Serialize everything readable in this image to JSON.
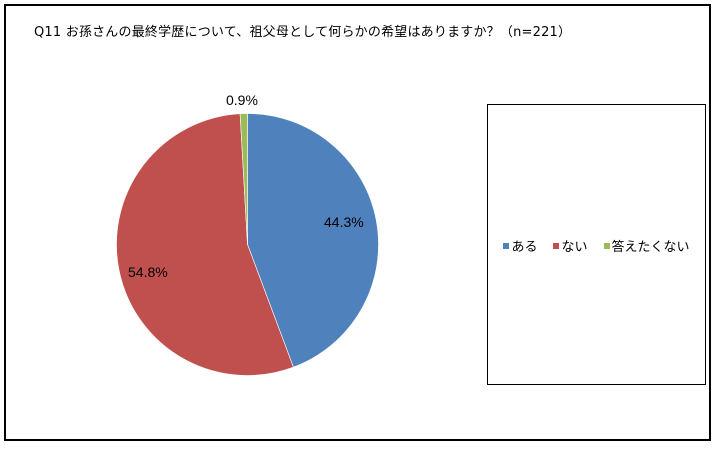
{
  "title": "Q11 お孫さんの最終学歴について、祖父母として何らかの希望はありますか？（n=221）",
  "colors": {
    "ある": "#4F81BD",
    "ない": "#C0504D",
    "答えたくない": "#9BBB59"
  },
  "legend": {
    "items": [
      {
        "label": "ある",
        "color": "#4F81BD"
      },
      {
        "label": "ない",
        "color": "#C0504D"
      },
      {
        "label": "答えたくない",
        "color": "#9BBB59"
      }
    ]
  },
  "labels": {
    "aru": "44.3%",
    "nai": "54.8%",
    "kotaetakunai": "0.9%"
  },
  "chart_data": {
    "type": "pie",
    "title": "Q11 お孫さんの最終学歴について、祖父母として何らかの希望はありますか？（n=221）",
    "categories": [
      "ある",
      "ない",
      "答えたくない"
    ],
    "values": [
      44.3,
      54.8,
      0.9
    ],
    "unit": "%",
    "n": 221,
    "start_angle": "12 o'clock, clockwise",
    "legend_position": "right"
  }
}
